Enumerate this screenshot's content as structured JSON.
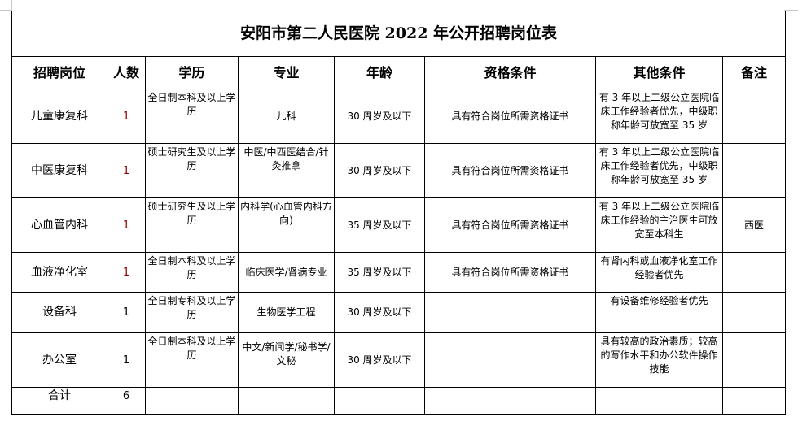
{
  "title": "安阳市第二人民医院 2022 年公开招聘岗位表",
  "headers": [
    "招聘岗位",
    "人数",
    "学历",
    "专业",
    "年龄",
    "资格条件",
    "其他条件",
    "备注"
  ],
  "rows": [
    {
      "position": "儿童康复科",
      "count": "1",
      "education": "全日制本科及以上学历",
      "major": "儿科",
      "age": "30 周岁及以下",
      "qualification": "具有符合岗位所需资格证书",
      "other": "有 3 年以上二级公立医院临床工作经验者优先，中级职称年龄可放宽至 35 岁",
      "note": ""
    },
    {
      "position": "中医康复科",
      "count": "1",
      "education": "硕士研究生及以上学历",
      "major": "中医/中西医结合/针灸推拿",
      "age": "30 周岁及以下",
      "qualification": "具有符合岗位所需资格证书",
      "other": "有 3 年以上二级公立医院临床工作经验者优先，中级职称年龄可放宽至 35 岁",
      "note": ""
    },
    {
      "position": "心血管内科",
      "count": "1",
      "education": "硕士研究生及以上学历",
      "major": "内科学(心血管内科方向)",
      "age": "35 周岁及以下",
      "qualification": "具有符合岗位所需资格证书",
      "other": "有 3 年以上二级公立医院临床工作经验的主治医生可放宽至本科生",
      "note": "西医"
    },
    {
      "position": "血液净化室",
      "count": "1",
      "education": "全日制本科及以上学历",
      "major": "临床医学/肾病专业",
      "age": "35 周岁及以下",
      "qualification": "具有符合岗位所需资格证书",
      "other": "有肾内科或血液净化室工作经验者优先",
      "note": ""
    },
    {
      "position": "设备科",
      "count": "1",
      "education": "全日制专科及以上学历",
      "major": "生物医学工程",
      "age": "30 周岁及以下",
      "qualification": "",
      "other": "有设备维修经验者优先",
      "note": ""
    },
    {
      "position": "办公室",
      "count": "1",
      "education": "全日制本科及以上学历",
      "major": "中文/新闻学/秘书学/文秘",
      "age": "30 周岁及以下",
      "qualification": "",
      "other": "具有较高的政治素质；较高的写作水平和办公软件操作技能",
      "note": ""
    }
  ],
  "total": {
    "label": "合计",
    "count": "6"
  }
}
